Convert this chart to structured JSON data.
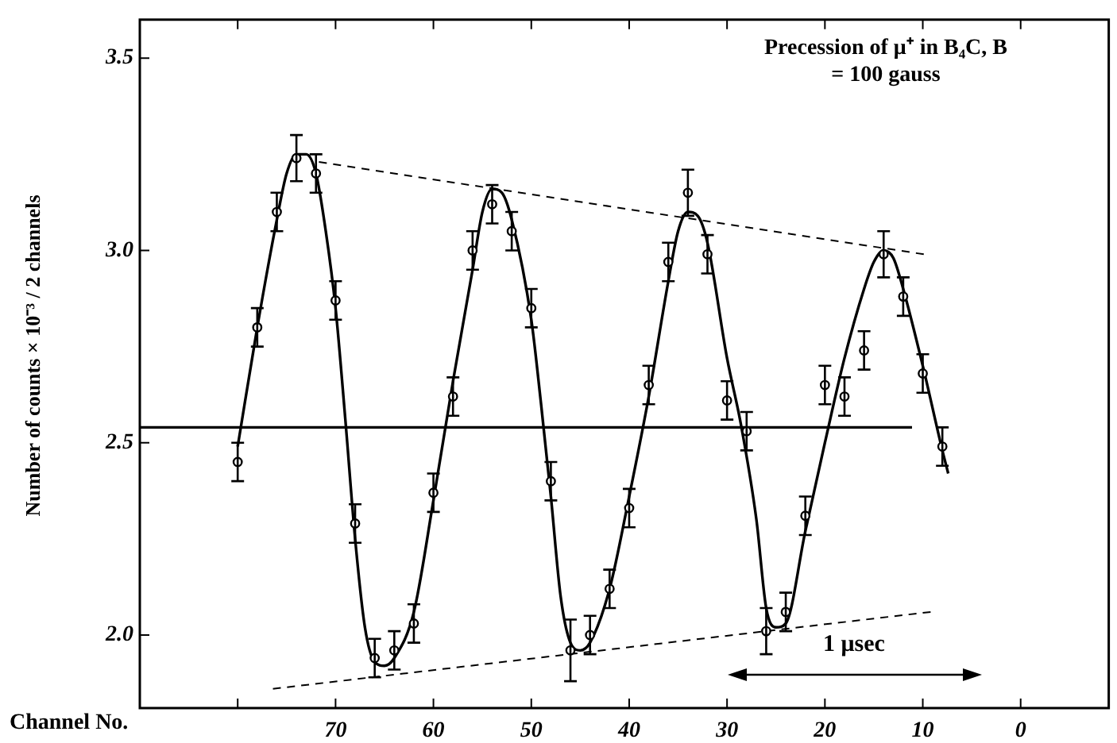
{
  "chart_data": {
    "type": "scatter",
    "title": "Precession of μ⁺ in B₄C, B = 100 gauss",
    "xlabel": "Channel No.",
    "ylabel": "Number of counts × 10⁻³ / 2 channels",
    "xlim": [
      90,
      -9
    ],
    "xticks": [
      {
        "value": 80,
        "label": null
      },
      70,
      60,
      50,
      40,
      30,
      20,
      10,
      0
    ],
    "ylim": [
      1.81,
      3.6
    ],
    "yticks": [
      {
        "value": 2,
        "label": "2.0"
      },
      2.5,
      {
        "value": 3,
        "label": "3.0"
      },
      3.5
    ],
    "grid": false,
    "legend": false,
    "annotations": [
      "1 μsec"
    ],
    "series": [
      {
        "type": "scatter",
        "color": "#000000",
        "marker": "circle",
        "x": [
          80,
          78,
          76,
          74,
          72,
          70,
          68,
          66,
          64,
          62,
          60,
          58,
          56,
          54,
          52,
          50,
          48,
          46,
          44,
          42,
          40,
          38,
          36,
          34,
          32,
          30,
          28,
          26,
          24,
          22,
          20,
          18,
          16,
          14,
          12,
          10,
          8
        ],
        "values": [
          2.45,
          2.8,
          3.1,
          3.24,
          3.2,
          2.87,
          2.29,
          1.94,
          1.96,
          2.03,
          2.37,
          2.62,
          3.0,
          3.12,
          3.05,
          2.85,
          2.4,
          1.96,
          2.0,
          2.12,
          2.33,
          2.65,
          2.97,
          3.15,
          2.99,
          2.61,
          2.53,
          2.01,
          2.06,
          2.31,
          2.65,
          2.62,
          2.74,
          2.99,
          2.88,
          2.68,
          2.49
        ],
        "errors": [
          0.05,
          0.05,
          0.05,
          0.06,
          0.05,
          0.05,
          0.05,
          0.05,
          0.05,
          0.05,
          0.05,
          0.05,
          0.05,
          0.05,
          0.05,
          0.05,
          0.05,
          0.08,
          0.05,
          0.05,
          0.05,
          0.05,
          0.05,
          0.06,
          0.05,
          0.05,
          0.05,
          0.06,
          0.05,
          0.05,
          0.05,
          0.05,
          0.05,
          0.06,
          0.05,
          0.05,
          0.05
        ]
      },
      {
        "type": "line",
        "color": "#000000",
        "marker": "none",
        "line_style": "solid",
        "x": [
          80,
          78,
          76,
          75,
          74,
          73,
          72,
          71,
          70,
          69,
          68,
          67,
          66,
          65,
          64,
          62,
          60,
          58,
          56,
          55,
          54,
          53,
          52,
          50,
          49,
          48,
          47,
          46,
          45,
          44,
          42,
          40,
          38,
          36,
          35,
          34,
          33,
          32,
          30,
          28.6,
          27,
          26,
          25,
          24,
          22,
          20,
          18,
          16,
          15,
          14,
          13,
          12,
          10,
          8,
          7.4
        ],
        "values": [
          2.49,
          2.8,
          3.08,
          3.2,
          3.25,
          3.25,
          3.2,
          3.05,
          2.85,
          2.56,
          2.25,
          2.02,
          1.93,
          1.92,
          1.94,
          2.06,
          2.35,
          2.66,
          2.95,
          3.1,
          3.16,
          3.15,
          3.08,
          2.82,
          2.6,
          2.36,
          2.1,
          1.98,
          1.96,
          1.98,
          2.12,
          2.36,
          2.62,
          2.92,
          3.05,
          3.1,
          3.09,
          3.02,
          2.72,
          2.55,
          2.3,
          2.07,
          2.02,
          2.03,
          2.27,
          2.5,
          2.72,
          2.9,
          2.97,
          3.0,
          2.98,
          2.9,
          2.7,
          2.48,
          2.42
        ]
      },
      {
        "type": "line",
        "color": "#000000",
        "marker": "none",
        "line_style": "dashed",
        "x": [
          71.7,
          9.9
        ],
        "values": [
          3.23,
          2.99
        ]
      },
      {
        "type": "line",
        "color": "#000000",
        "marker": "none",
        "line_style": "dashed",
        "x": [
          76.4,
          9.2
        ],
        "values": [
          1.86,
          2.06
        ]
      },
      {
        "type": "line",
        "color": "#000000",
        "marker": "none",
        "line_style": "solid",
        "x": [
          90,
          11.1
        ],
        "values": [
          2.54,
          2.54
        ]
      }
    ]
  }
}
